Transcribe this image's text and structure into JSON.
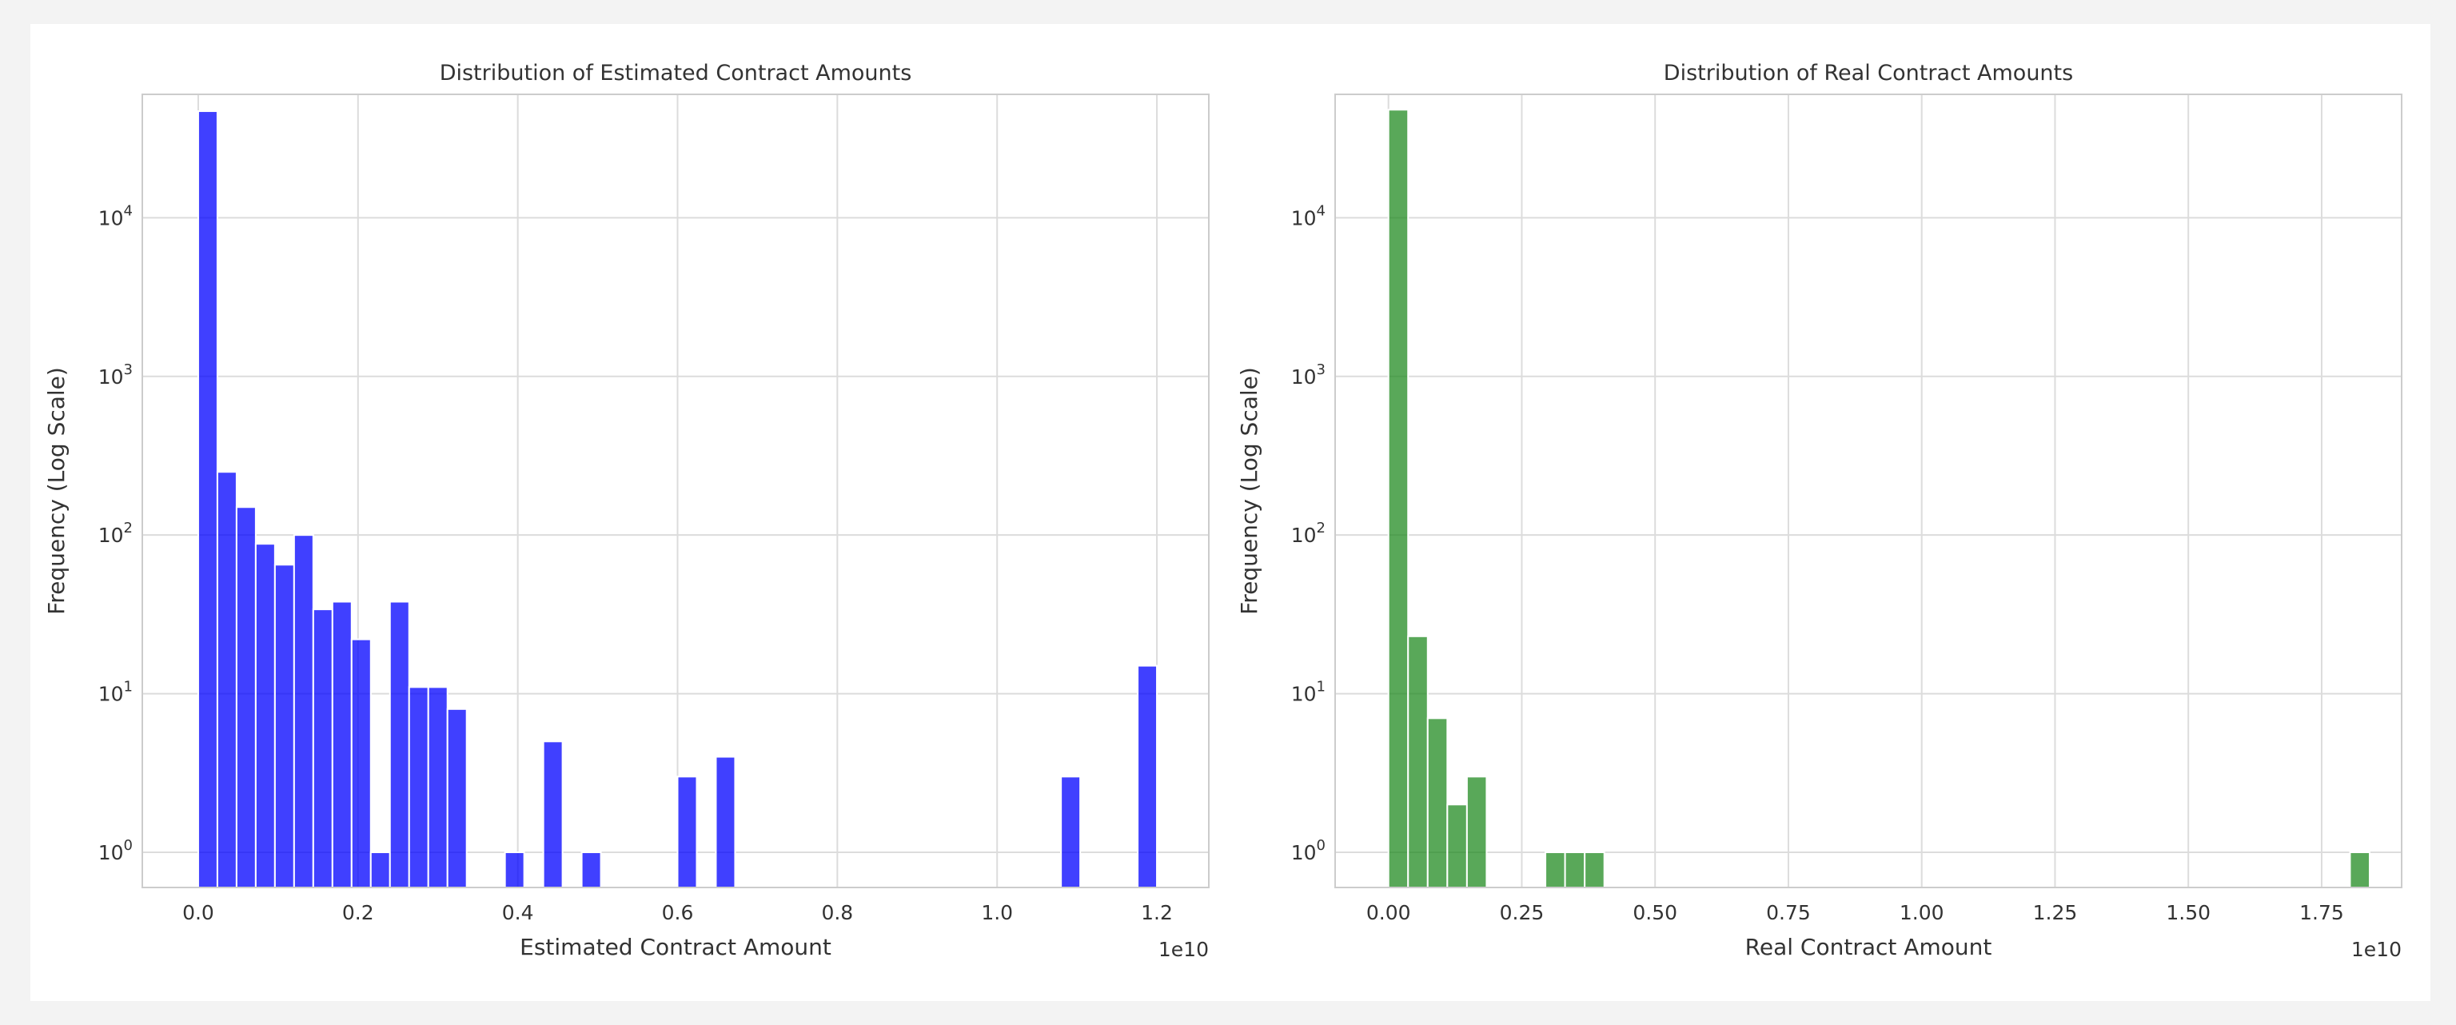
{
  "chart_data": [
    {
      "type": "histogram",
      "title": "Distribution of Estimated Contract Amounts",
      "xlabel": "Estimated Contract Amount",
      "ylabel": "Frequency (Log Scale)",
      "x_scale_label": "1e10",
      "y_scale": "log",
      "grid": true,
      "color": "#0000ff",
      "xlim": [
        -0.07,
        1.265
      ],
      "ylim": [
        0.6,
        60000
      ],
      "xticks": [
        0.0,
        0.2,
        0.4,
        0.6,
        0.8,
        1.0,
        1.2
      ],
      "xtick_labels": [
        "0.0",
        "0.2",
        "0.4",
        "0.6",
        "0.8",
        "1.0",
        "1.2"
      ],
      "yticks": [
        1,
        10,
        100,
        1000,
        10000
      ],
      "ytick_labels": [
        {
          "base": "10",
          "exp": "0"
        },
        {
          "base": "10",
          "exp": "1"
        },
        {
          "base": "10",
          "exp": "2"
        },
        {
          "base": "10",
          "exp": "3"
        },
        {
          "base": "10",
          "exp": "4"
        }
      ],
      "bin_start": 0.0,
      "bin_width": 0.024,
      "counts": [
        47000,
        250,
        150,
        88,
        65,
        100,
        34,
        38,
        22,
        1,
        38,
        11,
        11,
        8,
        0,
        0,
        1,
        0,
        5,
        0,
        1,
        0,
        0,
        0,
        0,
        3,
        0,
        4,
        0,
        0,
        0,
        0,
        0,
        0,
        0,
        0,
        0,
        0,
        0,
        0,
        0,
        0,
        0,
        0,
        0,
        3,
        0,
        0,
        0,
        15
      ]
    },
    {
      "type": "histogram",
      "title": "Distribution of Real Contract Amounts",
      "xlabel": "Real Contract Amount",
      "ylabel": "Frequency (Log Scale)",
      "x_scale_label": "1e10",
      "y_scale": "log",
      "grid": true,
      "color": "#228b22",
      "xlim": [
        -0.1,
        1.9
      ],
      "ylim": [
        0.6,
        60000
      ],
      "xticks": [
        0.0,
        0.25,
        0.5,
        0.75,
        1.0,
        1.25,
        1.5,
        1.75
      ],
      "xtick_labels": [
        "0.00",
        "0.25",
        "0.50",
        "0.75",
        "1.00",
        "1.25",
        "1.50",
        "1.75"
      ],
      "yticks": [
        1,
        10,
        100,
        1000,
        10000
      ],
      "ytick_labels": [
        {
          "base": "10",
          "exp": "0"
        },
        {
          "base": "10",
          "exp": "1"
        },
        {
          "base": "10",
          "exp": "2"
        },
        {
          "base": "10",
          "exp": "3"
        },
        {
          "base": "10",
          "exp": "4"
        }
      ],
      "bin_start": 0.0,
      "bin_width": 0.0368,
      "counts": [
        48000,
        23,
        7,
        2,
        3,
        0,
        0,
        0,
        1,
        1,
        1,
        0,
        0,
        0,
        0,
        0,
        0,
        0,
        0,
        0,
        0,
        0,
        0,
        0,
        0,
        0,
        0,
        0,
        0,
        0,
        0,
        0,
        0,
        0,
        0,
        0,
        0,
        0,
        0,
        0,
        0,
        0,
        0,
        0,
        0,
        0,
        0,
        0,
        0,
        1
      ]
    }
  ]
}
